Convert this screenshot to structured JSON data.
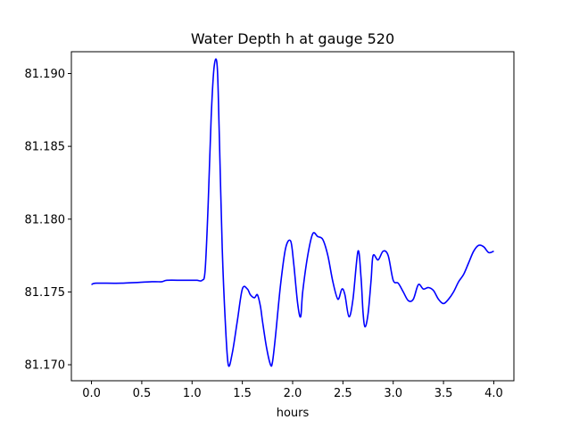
{
  "chart_data": {
    "type": "line",
    "title": "Water Depth h at gauge 520",
    "xlabel": "hours",
    "ylabel": "",
    "xlim": [
      -0.2,
      4.2
    ],
    "ylim": [
      81.1689,
      81.1915
    ],
    "xticks": [
      0.0,
      0.5,
      1.0,
      1.5,
      2.0,
      2.5,
      3.0,
      3.5,
      4.0
    ],
    "xtick_labels": [
      "0.0",
      "0.5",
      "1.0",
      "1.5",
      "2.0",
      "2.5",
      "3.0",
      "3.5",
      "4.0"
    ],
    "yticks": [
      81.17,
      81.175,
      81.18,
      81.185,
      81.19
    ],
    "ytick_labels": [
      "81.170",
      "81.175",
      "81.180",
      "81.185",
      "81.190"
    ],
    "grid": false,
    "series": [
      {
        "color": "#0000ff",
        "x": [
          0.0,
          0.05,
          0.3,
          0.6,
          0.7,
          0.75,
          0.9,
          1.0,
          1.05,
          1.1,
          1.13,
          1.16,
          1.19,
          1.22,
          1.25,
          1.27,
          1.3,
          1.33,
          1.36,
          1.4,
          1.45,
          1.5,
          1.55,
          1.58,
          1.62,
          1.65,
          1.68,
          1.7,
          1.74,
          1.78,
          1.8,
          1.83,
          1.88,
          1.93,
          1.98,
          2.01,
          2.05,
          2.08,
          2.1,
          2.15,
          2.2,
          2.25,
          2.3,
          2.35,
          2.4,
          2.45,
          2.49,
          2.52,
          2.56,
          2.6,
          2.65,
          2.68,
          2.7,
          2.72,
          2.75,
          2.78,
          2.8,
          2.85,
          2.9,
          2.95,
          3.0,
          3.05,
          3.1,
          3.15,
          3.2,
          3.25,
          3.3,
          3.35,
          3.4,
          3.45,
          3.5,
          3.55,
          3.6,
          3.65,
          3.7,
          3.75,
          3.8,
          3.85,
          3.9,
          3.95,
          4.0
        ],
        "y": [
          81.1755,
          81.1756,
          81.1756,
          81.1757,
          81.1757,
          81.1758,
          81.1758,
          81.1758,
          81.1758,
          81.1758,
          81.1765,
          81.181,
          81.187,
          81.1905,
          81.1905,
          81.186,
          81.178,
          81.173,
          81.17,
          81.1708,
          81.173,
          81.1752,
          81.1752,
          81.1748,
          81.1746,
          81.1748,
          81.174,
          81.173,
          81.1712,
          81.17,
          81.1702,
          81.172,
          81.1755,
          81.178,
          81.1785,
          81.177,
          81.1742,
          81.1733,
          81.175,
          81.1775,
          81.179,
          81.1788,
          81.1786,
          81.1775,
          81.1757,
          81.1745,
          81.1752,
          81.1748,
          81.1733,
          81.1745,
          81.1778,
          81.176,
          81.1736,
          81.1726,
          81.1735,
          81.1758,
          81.1775,
          81.1772,
          81.1778,
          81.1775,
          81.1758,
          81.1756,
          81.175,
          81.1744,
          81.1745,
          81.1755,
          81.1752,
          81.1753,
          81.1751,
          81.1745,
          81.1742,
          81.1745,
          81.175,
          81.1757,
          81.1762,
          81.177,
          81.1778,
          81.1782,
          81.1781,
          81.1777,
          81.1778
        ]
      }
    ]
  }
}
